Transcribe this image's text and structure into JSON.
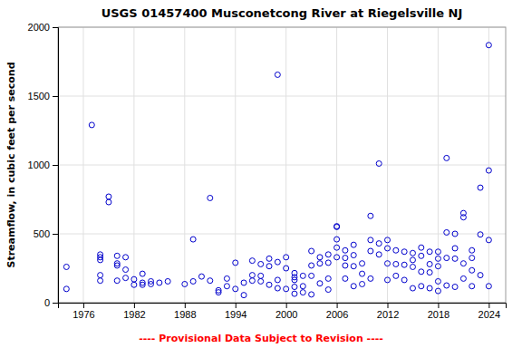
{
  "chart_data": {
    "type": "scatter",
    "title": "USGS 01457400 Musconetcong River at Riegelsville NJ",
    "y_label": "Streamflow, in cubic feet per second",
    "annotations": [
      {
        "text": "---- Provisional Data Subject to Revision ----",
        "color": "red"
      }
    ],
    "xlim": [
      1973,
      2026
    ],
    "ylim": [
      0,
      2000
    ],
    "xticks": [
      1976,
      1982,
      1988,
      1994,
      2000,
      2006,
      2012,
      2018,
      2024
    ],
    "yticks": [
      0,
      500,
      1000,
      1500,
      2000
    ],
    "grid": true,
    "color": "#0000CC",
    "marker": "circle-open",
    "x": [
      1974,
      1974,
      1977,
      1978,
      1978,
      1978,
      1978,
      1978,
      1979,
      1979,
      1980,
      1980,
      1980,
      1980,
      1981,
      1981,
      1981,
      1982,
      1982,
      1983,
      1983,
      1983,
      1984,
      1984,
      1985,
      1986,
      1988,
      1989,
      1989,
      1990,
      1991,
      1991,
      1992,
      1992,
      1993,
      1993,
      1994,
      1994,
      1995,
      1995,
      1996,
      1996,
      1996,
      1997,
      1997,
      1997,
      1998,
      1998,
      1998,
      1999,
      1999,
      1999,
      1999,
      2000,
      2000,
      2000,
      2001,
      2001,
      2001,
      2001,
      2001,
      2002,
      2002,
      2002,
      2003,
      2003,
      2003,
      2003,
      2004,
      2004,
      2004,
      2005,
      2005,
      2005,
      2005,
      2006,
      2006,
      2006,
      2006,
      2006,
      2007,
      2007,
      2007,
      2007,
      2008,
      2008,
      2008,
      2008,
      2009,
      2009,
      2009,
      2010,
      2010,
      2010,
      2010,
      2011,
      2011,
      2011,
      2012,
      2012,
      2012,
      2012,
      2013,
      2013,
      2013,
      2014,
      2014,
      2014,
      2015,
      2015,
      2015,
      2015,
      2016,
      2016,
      2016,
      2016,
      2017,
      2017,
      2017,
      2017,
      2018,
      2018,
      2018,
      2018,
      2018,
      2019,
      2019,
      2019,
      2019,
      2020,
      2020,
      2020,
      2020,
      2021,
      2021,
      2021,
      2021,
      2022,
      2022,
      2022,
      2022,
      2023,
      2023,
      2023,
      2024,
      2024,
      2024,
      2024
    ],
    "y": [
      260,
      100,
      1290,
      330,
      350,
      310,
      200,
      160,
      770,
      730,
      340,
      285,
      270,
      160,
      330,
      240,
      180,
      170,
      130,
      210,
      145,
      130,
      155,
      135,
      145,
      155,
      135,
      460,
      155,
      190,
      760,
      160,
      90,
      75,
      175,
      120,
      290,
      100,
      145,
      55,
      305,
      200,
      160,
      280,
      195,
      155,
      320,
      265,
      130,
      1655,
      295,
      165,
      105,
      330,
      250,
      100,
      215,
      185,
      165,
      115,
      65,
      195,
      120,
      75,
      375,
      270,
      195,
      60,
      330,
      285,
      140,
      350,
      290,
      175,
      95,
      555,
      550,
      460,
      400,
      330,
      380,
      325,
      270,
      175,
      420,
      345,
      265,
      120,
      285,
      210,
      135,
      630,
      455,
      375,
      175,
      1010,
      430,
      350,
      455,
      395,
      285,
      165,
      380,
      280,
      195,
      370,
      275,
      165,
      360,
      310,
      260,
      105,
      400,
      340,
      225,
      120,
      370,
      280,
      220,
      105,
      370,
      320,
      265,
      155,
      85,
      1050,
      510,
      325,
      125,
      500,
      395,
      320,
      115,
      650,
      620,
      285,
      175,
      380,
      325,
      235,
      120,
      835,
      495,
      200,
      1870,
      960,
      455,
      120
    ]
  }
}
